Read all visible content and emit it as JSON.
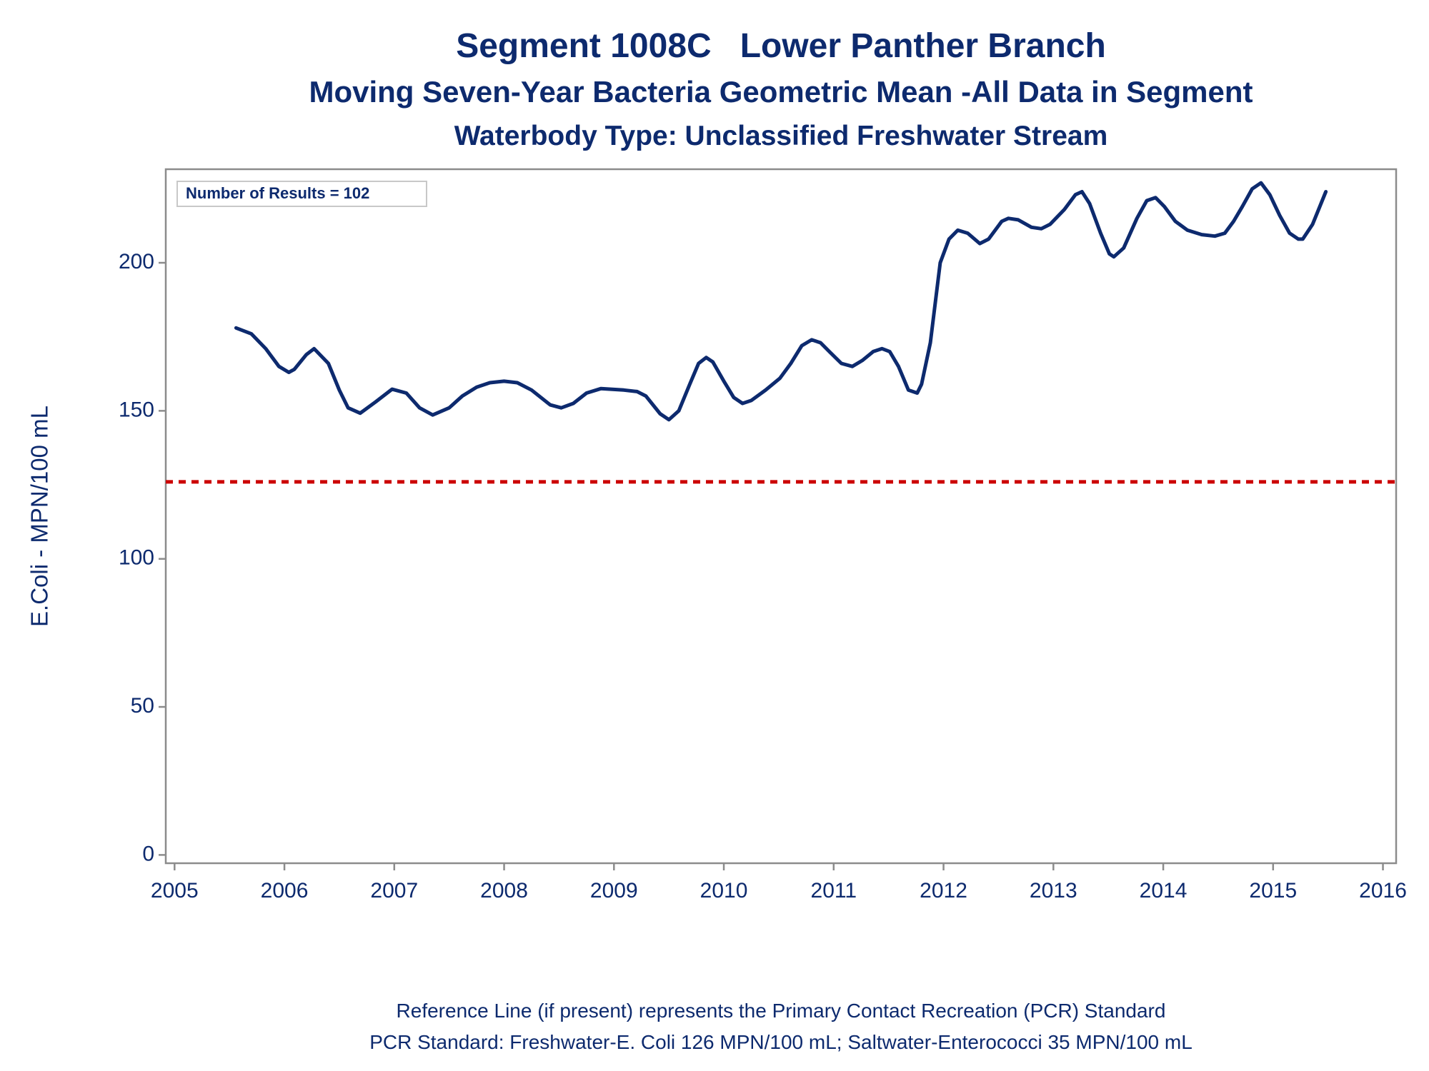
{
  "chart_data": {
    "type": "line",
    "title": "Segment 1008C   Lower Panther Branch",
    "subtitle": "Moving Seven-Year Bacteria Geometric Mean -All Data in Segment",
    "subtitle2": "Waterbody Type: Unclassified Freshwater Stream",
    "y_label": "E.Coli - MPN/100 mL",
    "annotation": "Number of Results = 102",
    "footnotes": [
      "Reference Line (if present) represents the Primary Contact Recreation (PCR) Standard",
      "PCR Standard: Freshwater-E. Coli 126 MPN/100 mL; Saltwater-Enterococci 35 MPN/100 mL"
    ],
    "color": "#0d2a6e",
    "reference_line": {
      "value": 126,
      "color": "#cc0000"
    },
    "xlim": [
      2004.92,
      2016.12
    ],
    "ylim": [
      -2.8,
      231.6
    ],
    "xticks": [
      2005,
      2006,
      2007,
      2008,
      2009,
      2010,
      2011,
      2012,
      2013,
      2014,
      2015,
      2016
    ],
    "yticks": [
      0,
      50,
      100,
      150,
      200
    ],
    "x": [
      2005.56,
      2005.7,
      2005.83,
      2005.95,
      2006.04,
      2006.09,
      2006.2,
      2006.27,
      2006.4,
      2006.5,
      2006.58,
      2006.69,
      2006.83,
      2006.98,
      2007.11,
      2007.23,
      2007.35,
      2007.5,
      2007.62,
      2007.75,
      2007.87,
      2008.0,
      2008.12,
      2008.25,
      2008.42,
      2008.52,
      2008.63,
      2008.75,
      2008.88,
      2009.09,
      2009.21,
      2009.29,
      2009.42,
      2009.5,
      2009.59,
      2009.69,
      2009.77,
      2009.84,
      2009.9,
      2010.0,
      2010.09,
      2010.17,
      2010.25,
      2010.38,
      2010.51,
      2010.61,
      2010.71,
      2010.8,
      2010.88,
      2010.96,
      2011.07,
      2011.17,
      2011.26,
      2011.36,
      2011.44,
      2011.51,
      2011.59,
      2011.68,
      2011.76,
      2011.8,
      2011.88,
      2011.97,
      2012.05,
      2012.13,
      2012.22,
      2012.33,
      2012.41,
      2012.53,
      2012.59,
      2012.68,
      2012.8,
      2012.89,
      2012.97,
      2013.1,
      2013.2,
      2013.26,
      2013.33,
      2013.43,
      2013.51,
      2013.55,
      2013.64,
      2013.76,
      2013.85,
      2013.93,
      2014.01,
      2014.11,
      2014.22,
      2014.35,
      2014.47,
      2014.56,
      2014.64,
      2014.72,
      2014.81,
      2014.89,
      2014.97,
      2015.06,
      2015.15,
      2015.23,
      2015.27,
      2015.36,
      2015.48
    ],
    "values": [
      178,
      176,
      171,
      165,
      163,
      164,
      169,
      171,
      166,
      157,
      151,
      149.2,
      153,
      157.3,
      156,
      151,
      148.6,
      151,
      155,
      158,
      159.5,
      160,
      159.5,
      157,
      152,
      151,
      152.5,
      156,
      157.5,
      157,
      156.5,
      155,
      149,
      147,
      150,
      159,
      166,
      168,
      166.5,
      160,
      154.5,
      152.5,
      153.5,
      157,
      161,
      166,
      172,
      174,
      173,
      170,
      166,
      165,
      167,
      170,
      171,
      170,
      165,
      157,
      156,
      159,
      173,
      200,
      208,
      211,
      210,
      206.5,
      208,
      214,
      215,
      214.5,
      212,
      211.5,
      213,
      218,
      223,
      224,
      220,
      210,
      203,
      202,
      205,
      215,
      221,
      222,
      219,
      214,
      211,
      209.5,
      209,
      210,
      214,
      219,
      225,
      227,
      223,
      216,
      210,
      208,
      208,
      213,
      224
    ]
  }
}
